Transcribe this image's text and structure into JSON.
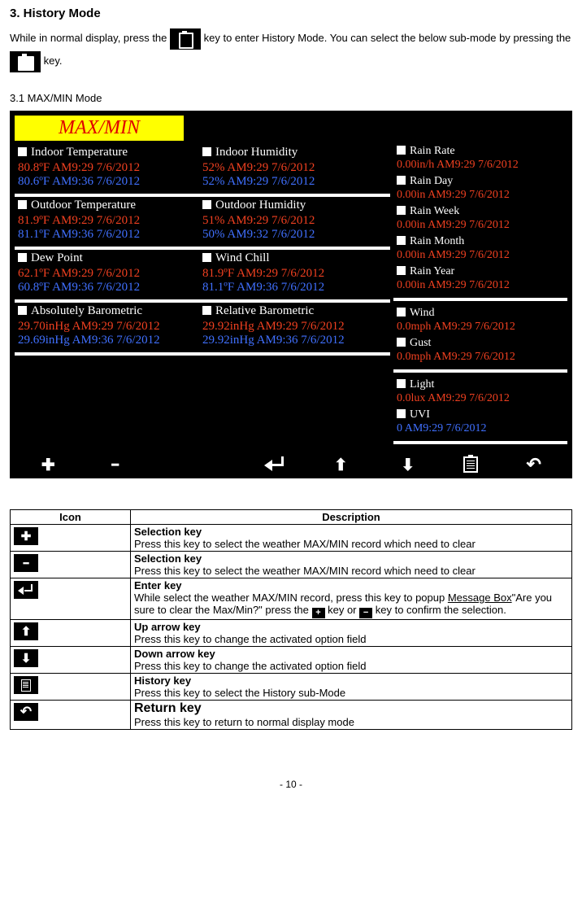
{
  "doc": {
    "section_title": "3.  History Mode",
    "intro_1": "While in normal display, press the ",
    "intro_2": " key to enter History Mode. You can select the below sub-mode by pressing the ",
    "intro_3": " key.",
    "sub_title": "3.1 MAX/MIN Mode",
    "page_num": "- 10 -"
  },
  "screen": {
    "header": "MAX/MIN",
    "left_panels": [
      {
        "cols": [
          {
            "label": "Indoor Temperature",
            "red": "80.8ºF AM9:29 7/6/2012",
            "blue": "80.6ºF AM9:36 7/6/2012"
          },
          {
            "label": "Indoor Humidity",
            "red": "52% AM9:29 7/6/2012",
            "blue": "52% AM9:29 7/6/2012"
          }
        ]
      },
      {
        "cols": [
          {
            "label": "Outdoor Temperature",
            "red": "81.9ºF AM9:29 7/6/2012",
            "blue": "81.1ºF AM9:36 7/6/2012"
          },
          {
            "label": "Outdoor Humidity",
            "red": "51% AM9:29 7/6/2012",
            "blue": "50% AM9:32 7/6/2012"
          }
        ]
      },
      {
        "cols": [
          {
            "label": "Dew Point",
            "red": "62.1ºF AM9:29 7/6/2012",
            "blue": "60.8ºF AM9:36 7/6/2012"
          },
          {
            "label": "Wind Chill",
            "red": "81.9ºF AM9:29 7/6/2012",
            "blue": "81.1ºF AM9:36 7/6/2012"
          }
        ]
      },
      {
        "cols": [
          {
            "label": "Absolutely Barometric",
            "red": "29.70inHg AM9:29 7/6/2012",
            "blue": "29.69inHg AM9:36 7/6/2012"
          },
          {
            "label": "Relative Barometric",
            "red": "29.92inHg AM9:29 7/6/2012",
            "blue": "29.92inHg AM9:36 7/6/2012"
          }
        ]
      }
    ],
    "right_groups": [
      {
        "items": [
          {
            "label": "Rain Rate",
            "red": "0.00in/h AM9:29 7/6/2012"
          },
          {
            "label": "Rain Day",
            "red": "0.00in AM9:29 7/6/2012"
          },
          {
            "label": "Rain Week",
            "red": "0.00in AM9:29 7/6/2012"
          },
          {
            "label": "Rain Month",
            "red": "0.00in AM9:29 7/6/2012"
          },
          {
            "label": "Rain Year",
            "red": "0.00in AM9:29 7/6/2012"
          }
        ]
      },
      {
        "items": [
          {
            "label": "Wind",
            "red": "0.0mph AM9:29 7/6/2012"
          },
          {
            "label": "Gust",
            "red": "0.0mph AM9:29 7/6/2012"
          }
        ]
      },
      {
        "items": [
          {
            "label": "Light",
            "red": "0.0lux AM9:29 7/6/2012"
          },
          {
            "label": "UVI",
            "blue": "0 AM9:29 7/6/2012"
          }
        ]
      }
    ]
  },
  "table": {
    "header_icon": "Icon",
    "header_desc": "Description",
    "rows": [
      {
        "icon": "plus",
        "title": "Selection key",
        "body": "Press this key to select the weather MAX/MIN record which need to clear"
      },
      {
        "icon": "minus",
        "title": "Selection key",
        "body": "Press this key to select the weather MAX/MIN record which need to clear"
      },
      {
        "icon": "enter",
        "title": "Enter key",
        "body_pre": "While select the weather MAX/MIN record, press this key to popup Message Box\"Are you sure to clear the Max/Min?\" press the ",
        "body_mid": " key or ",
        "body_post": " key to confirm the selection."
      },
      {
        "icon": "up",
        "title": "Up arrow key",
        "body": "Press this key to change the activated option field"
      },
      {
        "icon": "down",
        "title": "Down arrow key",
        "body": "Press this key to change the activated option field"
      },
      {
        "icon": "hist",
        "title": "History key",
        "body": "Press this key to select the History sub-Mode"
      },
      {
        "icon": "back",
        "title": "Return key",
        "body": "Press this key to return to normal display mode",
        "big": true
      }
    ]
  }
}
